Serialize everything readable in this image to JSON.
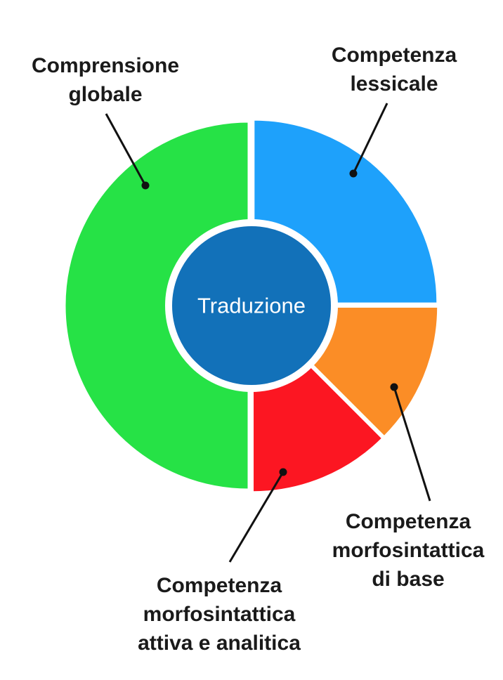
{
  "chart_data": {
    "type": "pie",
    "title": "",
    "center_label": "Traduzione",
    "center_color": "#1271b9",
    "slices": [
      {
        "label": [
          "Competenza",
          "lessicale"
        ],
        "value": 25,
        "color": "#1ea1fb"
      },
      {
        "label": [
          "Competenza",
          "morfosintattica",
          "di base"
        ],
        "value": 12.5,
        "color": "#fb8d26"
      },
      {
        "label": [
          "Competenza",
          "morfosintattica",
          "attiva e analitica"
        ],
        "value": 12.5,
        "color": "#fc1622"
      },
      {
        "label": [
          "Comprensione",
          "globale"
        ],
        "value": 50,
        "color": "#26e246"
      }
    ],
    "legend": "none"
  }
}
